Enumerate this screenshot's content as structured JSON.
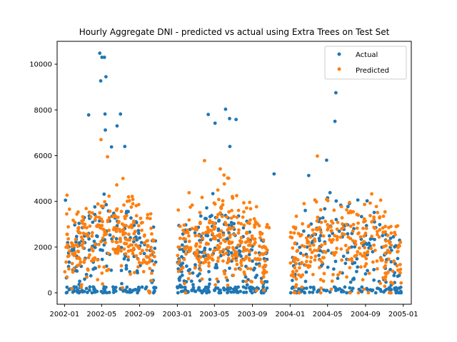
{
  "chart_data": {
    "type": "scatter",
    "title": "Hourly Aggregate DNI - predicted vs actual using Extra Trees on Test Set",
    "xlabel": "",
    "ylabel": "",
    "x_range": [
      "2001-12-08",
      "2005-01-27"
    ],
    "ylim": [
      -500,
      11000
    ],
    "x_tick_labels": [
      "2002-01",
      "2002-05",
      "2002-09",
      "2003-01",
      "2003-05",
      "2003-09",
      "2004-01",
      "2004-05",
      "2004-09",
      "2005-01"
    ],
    "x_tick_dates": [
      "2002-01-01",
      "2002-05-01",
      "2002-09-01",
      "2003-01-01",
      "2003-05-01",
      "2003-09-01",
      "2004-01-01",
      "2004-05-01",
      "2004-09-01",
      "2005-01-01"
    ],
    "y_ticks": [
      0,
      2000,
      4000,
      6000,
      8000,
      10000
    ],
    "y_tick_labels": [
      "0",
      "2000",
      "4000",
      "6000",
      "8000",
      "10000"
    ],
    "grid": false,
    "legend_position": "top-right",
    "series": [
      {
        "name": "Actual",
        "color": "#1f77b4",
        "marker": "circle",
        "clusters": [
          {
            "date_from": "2002-01-07",
            "date_to": "2002-10-25",
            "density": 0.78,
            "values_centered_on": 1800
          },
          {
            "date_from": "2003-01-01",
            "date_to": "2003-10-20",
            "density": 0.92,
            "values_centered_on": 1600
          },
          {
            "date_from": "2004-01-02",
            "date_to": "2004-12-26",
            "density": 0.62,
            "values_centered_on": 1700
          }
        ],
        "notable_values": [
          {
            "x": "2002-01-04",
            "y": 4050
          },
          {
            "x": "2002-04-25",
            "y": 10480
          },
          {
            "x": "2002-05-02",
            "y": 10300
          },
          {
            "x": "2002-05-10",
            "y": 10300
          },
          {
            "x": "2002-05-15",
            "y": 9450
          },
          {
            "x": "2002-04-28",
            "y": 9270
          },
          {
            "x": "2002-03-20",
            "y": 7780
          },
          {
            "x": "2002-05-12",
            "y": 7820
          },
          {
            "x": "2002-07-01",
            "y": 7820
          },
          {
            "x": "2002-06-20",
            "y": 7300
          },
          {
            "x": "2002-05-13",
            "y": 7120
          },
          {
            "x": "2002-06-02",
            "y": 6380
          },
          {
            "x": "2002-07-15",
            "y": 6400
          },
          {
            "x": "2003-04-11",
            "y": 7800
          },
          {
            "x": "2003-05-03",
            "y": 7420
          },
          {
            "x": "2003-06-06",
            "y": 8030
          },
          {
            "x": "2003-06-19",
            "y": 7620
          },
          {
            "x": "2003-07-10",
            "y": 7580
          },
          {
            "x": "2003-06-20",
            "y": 6400
          },
          {
            "x": "2003-11-10",
            "y": 5200
          },
          {
            "x": "2004-05-28",
            "y": 8750
          },
          {
            "x": "2004-05-25",
            "y": 7500
          },
          {
            "x": "2004-03-01",
            "y": 5130
          },
          {
            "x": "2004-04-28",
            "y": 5800
          },
          {
            "x": "2004-12-20",
            "y": 2300
          }
        ]
      },
      {
        "name": "Predicted",
        "color": "#ff7f0e",
        "marker": "circle",
        "clusters": [
          {
            "date_from": "2002-01-04",
            "date_to": "2002-10-20",
            "density": 0.95,
            "values_centered_on": 2300
          },
          {
            "date_from": "2003-01-01",
            "date_to": "2003-10-20",
            "density": 1.0,
            "values_centered_on": 2100
          },
          {
            "date_from": "2004-01-02",
            "date_to": "2004-12-26",
            "density": 0.8,
            "values_centered_on": 2000
          }
        ],
        "notable_values": [
          {
            "x": "2002-04-29",
            "y": 6700
          },
          {
            "x": "2002-05-20",
            "y": 5950
          },
          {
            "x": "2003-03-30",
            "y": 5780
          },
          {
            "x": "2003-05-20",
            "y": 5420
          },
          {
            "x": "2003-06-01",
            "y": 5150
          },
          {
            "x": "2003-06-13",
            "y": 5020
          },
          {
            "x": "2004-03-29",
            "y": 5980
          },
          {
            "x": "2004-02-15",
            "y": 3900
          },
          {
            "x": "2004-11-03",
            "y": 3540
          },
          {
            "x": "2004-12-20",
            "y": 2050
          },
          {
            "x": "2003-10-25",
            "y": 2850
          },
          {
            "x": "2002-01-02",
            "y": 920
          }
        ]
      }
    ]
  }
}
